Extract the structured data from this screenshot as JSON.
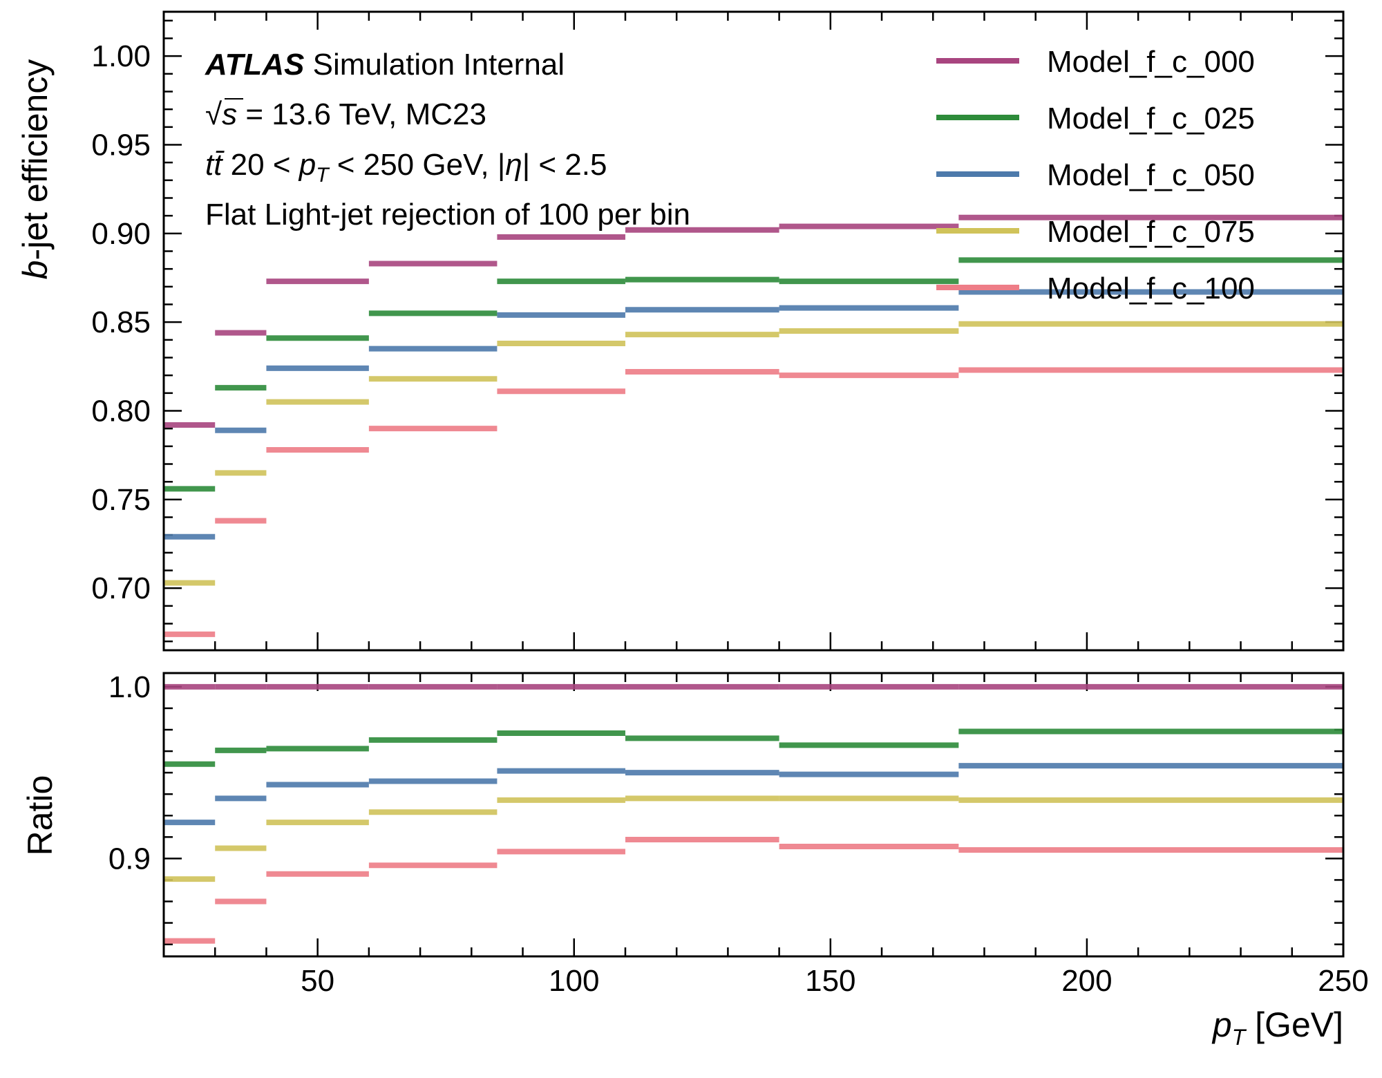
{
  "chart_data": {
    "type": "line",
    "bin_edges": [
      20,
      30,
      40,
      60,
      85,
      110,
      140,
      175,
      250
    ],
    "xlabel": "p_T [GeV]",
    "xlim": [
      20,
      250
    ],
    "xticks": [
      "50",
      "100",
      "150",
      "200",
      "250"
    ],
    "top_panel": {
      "ylabel": "b-jet efficiency",
      "ylim": [
        0.665,
        1.025
      ],
      "yticks": [
        "0.70",
        "0.75",
        "0.80",
        "0.85",
        "0.90",
        "0.95",
        "1.00"
      ]
    },
    "ratio_panel": {
      "ylabel": "Ratio",
      "ylim": [
        0.843,
        1.008
      ],
      "yticks": [
        "0.9",
        "1.0"
      ]
    },
    "annotations": {
      "atlas": "ATLAS",
      "atlas_suffix": "Simulation Internal",
      "sqrt": "√",
      "energy_s": "s",
      "energy_rest": " = 13.6 TeV, MC23",
      "process": "tt̄",
      "cut_a": " 20 < ",
      "cut_p": "p",
      "cut_sub": "T",
      "cut_b": " < 250 GeV, |",
      "cut_eta": "η",
      "cut_c": "| < 2.5",
      "wp": "Flat Light-jet rejection of 100 per bin"
    },
    "series": [
      {
        "name": "Model_f_c_000",
        "color": "#a8457f",
        "values": [
          0.792,
          0.844,
          0.873,
          0.883,
          0.898,
          0.902,
          0.904,
          0.909
        ],
        "ratio": [
          1.0,
          1.0,
          1.0,
          1.0,
          1.0,
          1.0,
          1.0,
          1.0
        ]
      },
      {
        "name": "Model_f_c_025",
        "color": "#2d8b3a",
        "values": [
          0.756,
          0.813,
          0.841,
          0.855,
          0.873,
          0.874,
          0.873,
          0.885
        ],
        "ratio": [
          0.955,
          0.963,
          0.964,
          0.969,
          0.973,
          0.97,
          0.966,
          0.974
        ]
      },
      {
        "name": "Model_f_c_050",
        "color": "#4d7aab",
        "values": [
          0.729,
          0.789,
          0.824,
          0.835,
          0.854,
          0.857,
          0.858,
          0.867
        ],
        "ratio": [
          0.921,
          0.935,
          0.943,
          0.945,
          0.951,
          0.95,
          0.949,
          0.954
        ]
      },
      {
        "name": "Model_f_c_075",
        "color": "#d0c35a",
        "values": [
          0.703,
          0.765,
          0.805,
          0.818,
          0.838,
          0.843,
          0.845,
          0.849
        ],
        "ratio": [
          0.888,
          0.906,
          0.921,
          0.927,
          0.934,
          0.935,
          0.935,
          0.934
        ]
      },
      {
        "name": "Model_f_c_100",
        "color": "#ee7d87",
        "values": [
          0.674,
          0.738,
          0.778,
          0.79,
          0.811,
          0.822,
          0.82,
          0.823
        ],
        "ratio": [
          0.852,
          0.875,
          0.891,
          0.896,
          0.904,
          0.911,
          0.907,
          0.905
        ]
      }
    ]
  }
}
